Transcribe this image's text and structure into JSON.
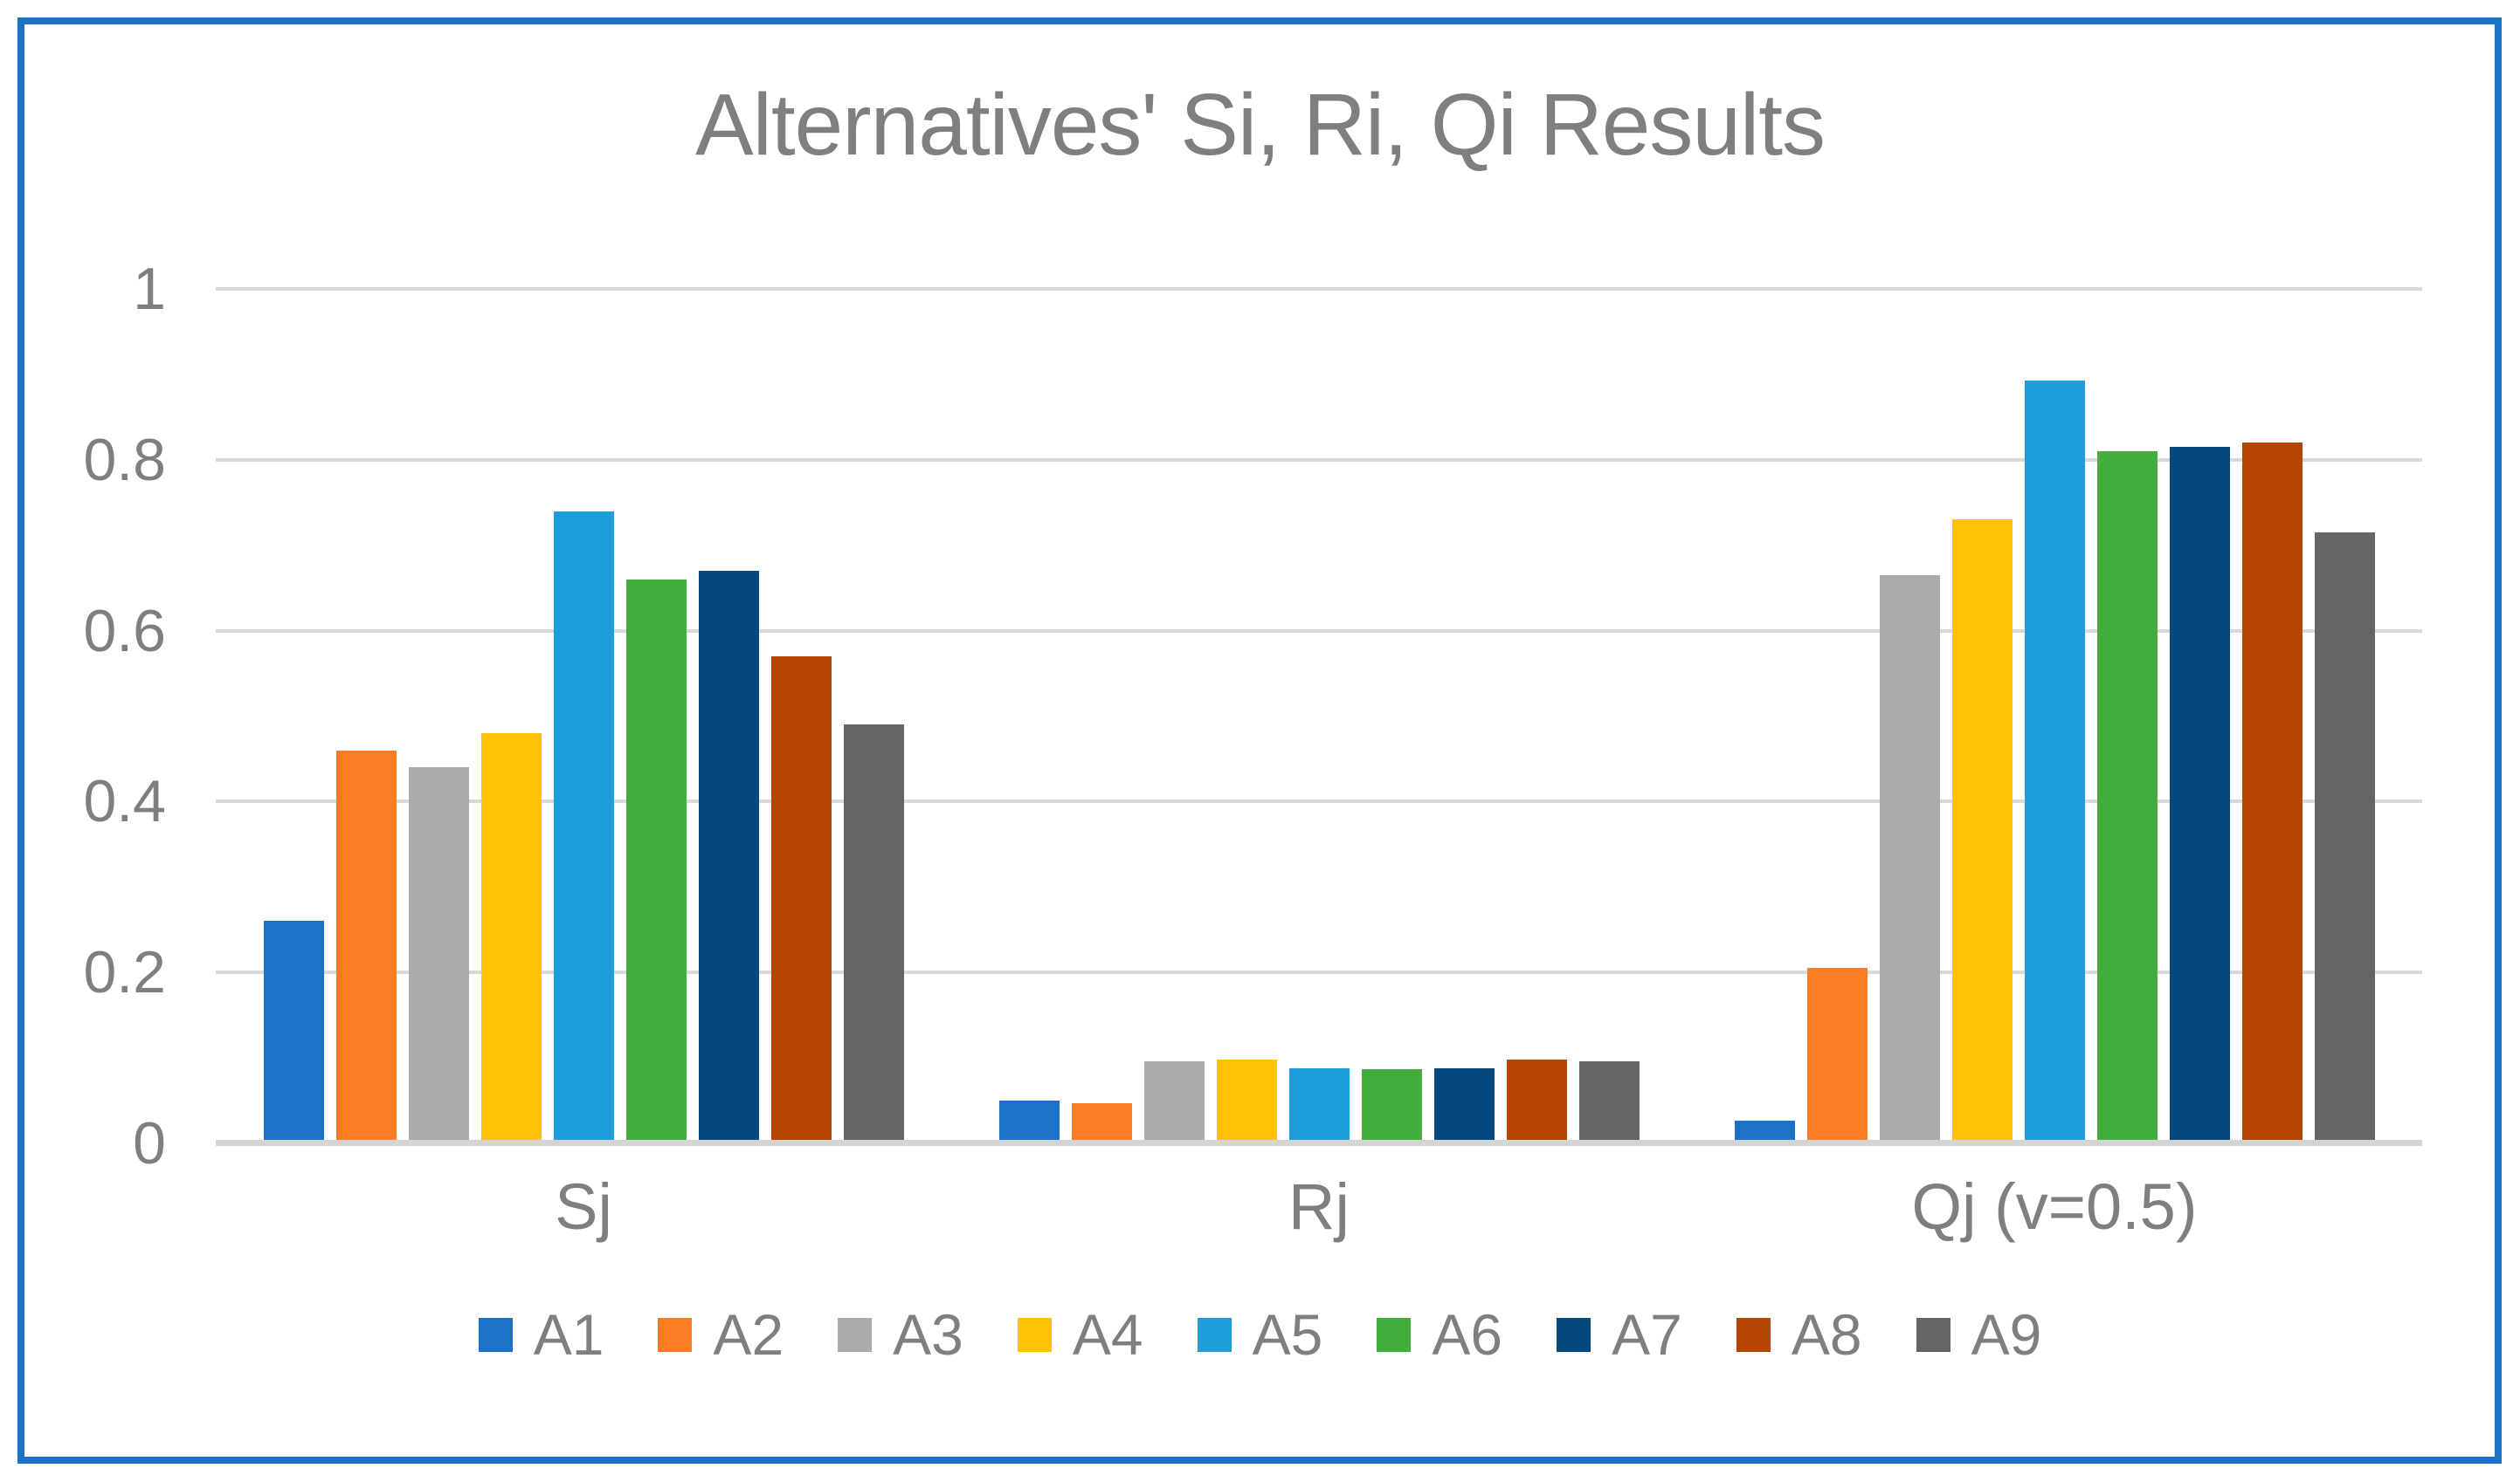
{
  "frame": {
    "border_color": "#1C72C6"
  },
  "chart_data": {
    "type": "bar",
    "title": "Alternatives' Si, Ri, Qi Results",
    "categories": [
      "Sj",
      "Rj",
      "Qj (v=0.5)"
    ],
    "series": [
      {
        "name": "A1",
        "color": "#1B72C8",
        "values": [
          0.26,
          0.05,
          0.027
        ]
      },
      {
        "name": "A2",
        "color": "#FB7D23",
        "values": [
          0.46,
          0.047,
          0.205
        ]
      },
      {
        "name": "A3",
        "color": "#ABABAB",
        "values": [
          0.44,
          0.096,
          0.665
        ]
      },
      {
        "name": "A4",
        "color": "#FFC103",
        "values": [
          0.48,
          0.098,
          0.73
        ]
      },
      {
        "name": "A5",
        "color": "#1E9DD8",
        "values": [
          0.74,
          0.088,
          0.893
        ]
      },
      {
        "name": "A6",
        "color": "#43AE3C",
        "values": [
          0.66,
          0.087,
          0.81
        ]
      },
      {
        "name": "A7",
        "color": "#05497D",
        "values": [
          0.67,
          0.088,
          0.815
        ]
      },
      {
        "name": "A8",
        "color": "#B44602",
        "values": [
          0.57,
          0.098,
          0.82
        ]
      },
      {
        "name": "A9",
        "color": "#656565",
        "values": [
          0.49,
          0.096,
          0.715
        ]
      }
    ],
    "ylim": [
      0,
      1
    ],
    "yticks": [
      {
        "label": "0",
        "value": 0
      },
      {
        "label": "0.2",
        "value": 0.2
      },
      {
        "label": "0.4",
        "value": 0.4
      },
      {
        "label": "0.6",
        "value": 0.6
      },
      {
        "label": "0.8",
        "value": 0.8
      },
      {
        "label": "1",
        "value": 1
      }
    ],
    "grid": true,
    "legend_position": "bottom"
  },
  "colors": {
    "gridline": "#D9D9D9",
    "axis_line": "#D4D4D4",
    "text": "#7F7F7F",
    "background": "#FFFFFF"
  }
}
